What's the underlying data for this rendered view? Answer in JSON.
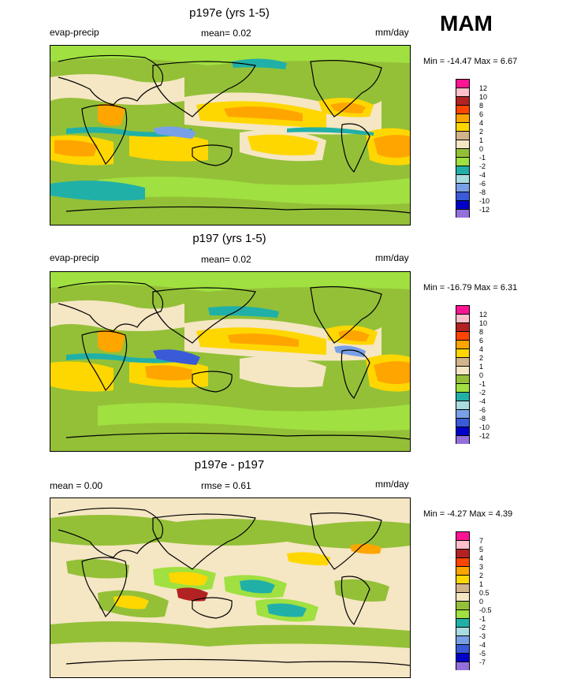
{
  "season": "MAM",
  "colors": {
    "land": "#94c038",
    "c_m12": "#9370db",
    "c_m10": "#0000c8",
    "c_m8": "#3a5ad8",
    "c_m6": "#78a0e6",
    "c_m4": "#a8dce0",
    "c_m2": "#20b0a8",
    "c_m1": "#a0e040",
    "c_0": "#94c038",
    "c_1": "#f5e6c4",
    "c_2": "#d2b48c",
    "c_4": "#ffd700",
    "c_6": "#ffa500",
    "c_8": "#ff4500",
    "c_10": "#b22222",
    "c_12": "#ffc0cb",
    "c_top": "#ff1493"
  },
  "panels": [
    {
      "title": "p197e (yrs 1-5)",
      "left_label": "evap-precip",
      "center_label": "mean=  0.02",
      "units": "mm/day",
      "minmax": "Min = -14.47 Max =   6.67",
      "legend_labels": [
        "12",
        "10",
        "8",
        "6",
        "4",
        "2",
        "1",
        "0",
        "-1",
        "-2",
        "-4",
        "-6",
        "-8",
        "-10",
        "-12"
      ],
      "legend_colors": [
        "#ff1493",
        "#ffc0cb",
        "#b22222",
        "#ff4500",
        "#ffa500",
        "#ffd700",
        "#d2b48c",
        "#f5e6c4",
        "#94c038",
        "#a0e040",
        "#20b0a8",
        "#a8dce0",
        "#78a0e6",
        "#3a5ad8",
        "#0000c8",
        "#9370db"
      ]
    },
    {
      "title": "p197 (yrs 1-5)",
      "left_label": "evap-precip",
      "center_label": "mean=  0.02",
      "units": "mm/day",
      "minmax": "Min = -16.79 Max =   6.31",
      "legend_labels": [
        "12",
        "10",
        "8",
        "6",
        "4",
        "2",
        "1",
        "0",
        "-1",
        "-2",
        "-4",
        "-6",
        "-8",
        "-10",
        "-12"
      ],
      "legend_colors": [
        "#ff1493",
        "#ffc0cb",
        "#b22222",
        "#ff4500",
        "#ffa500",
        "#ffd700",
        "#d2b48c",
        "#f5e6c4",
        "#94c038",
        "#a0e040",
        "#20b0a8",
        "#a8dce0",
        "#78a0e6",
        "#3a5ad8",
        "#0000c8",
        "#9370db"
      ]
    },
    {
      "title": "p197e - p197",
      "left_label": "mean =   0.00",
      "center_label": "rmse =   0.61",
      "units": "mm/day",
      "minmax": "Min =  -4.27 Max =   4.39",
      "legend_labels": [
        "7",
        "5",
        "4",
        "3",
        "2",
        "1",
        "0.5",
        "0",
        "-0.5",
        "-1",
        "-2",
        "-3",
        "-4",
        "-5",
        "-7"
      ],
      "legend_colors": [
        "#ff1493",
        "#ffc0cb",
        "#b22222",
        "#ff4500",
        "#ffa500",
        "#ffd700",
        "#d2b48c",
        "#f5e6c4",
        "#94c038",
        "#a0e040",
        "#20b0a8",
        "#a8dce0",
        "#78a0e6",
        "#3a5ad8",
        "#0000c8",
        "#9370db"
      ]
    }
  ]
}
